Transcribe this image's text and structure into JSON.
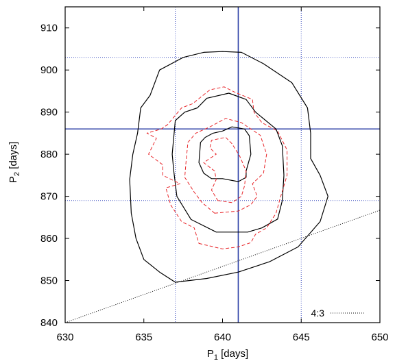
{
  "chart_data": {
    "type": "line",
    "title": "",
    "xlabel": {
      "main": "P",
      "sub": "1",
      "rest": " [days]"
    },
    "ylabel": {
      "main": "P",
      "sub": "2",
      "rest": " [days]"
    },
    "xlim": [
      630,
      650
    ],
    "ylim": [
      840,
      915
    ],
    "xticks": [
      630,
      635,
      640,
      645,
      650
    ],
    "yticks": [
      840,
      850,
      860,
      870,
      880,
      890,
      900,
      910
    ],
    "grid": false,
    "legend": {
      "position": "bottom-right",
      "entries": [
        {
          "label": "4:3",
          "style": "dotted"
        }
      ]
    },
    "colors": {
      "solid": "#000000",
      "dashed": "#e8262a",
      "reference": "#2b3fa6",
      "dotted_ref": "#3c4fbf"
    },
    "reference_lines": {
      "best_fit": {
        "x": 641,
        "y": 886
      },
      "bounds": {
        "x": [
          637,
          645
        ],
        "y": [
          869,
          903
        ]
      }
    },
    "resonance_line": {
      "label": "4:3",
      "points": [
        [
          630,
          840
        ],
        [
          650,
          866.7
        ]
      ]
    },
    "series": [
      {
        "style": "solid-outer",
        "points": [
          [
            637,
            849.6
          ],
          [
            639,
            850.5
          ],
          [
            641,
            852
          ],
          [
            643,
            854.5
          ],
          [
            644.8,
            858
          ],
          [
            646.2,
            864
          ],
          [
            646.7,
            870
          ],
          [
            646.2,
            875
          ],
          [
            645.6,
            879
          ],
          [
            645.6,
            885
          ],
          [
            645.4,
            891
          ],
          [
            644.4,
            897
          ],
          [
            642.6,
            901.5
          ],
          [
            641.2,
            904.2
          ],
          [
            640,
            904.4
          ],
          [
            638.8,
            904.2
          ],
          [
            637.5,
            903
          ],
          [
            636,
            900
          ],
          [
            635.4,
            894
          ],
          [
            634.8,
            891
          ],
          [
            634.6,
            885
          ],
          [
            634.3,
            880
          ],
          [
            634.1,
            874
          ],
          [
            634.2,
            866
          ],
          [
            634.5,
            860
          ],
          [
            635,
            855
          ],
          [
            636,
            852
          ]
        ]
      },
      {
        "style": "solid-middle",
        "points": [
          [
            638,
            864.5
          ],
          [
            639.6,
            861.5
          ],
          [
            641.6,
            861.5
          ],
          [
            642.5,
            862.5
          ],
          [
            643.5,
            864.6
          ],
          [
            643.8,
            869
          ],
          [
            643.9,
            875
          ],
          [
            643.8,
            882
          ],
          [
            643.4,
            886
          ],
          [
            642.1,
            890
          ],
          [
            641.5,
            893
          ],
          [
            640.4,
            894.5
          ],
          [
            639,
            893.3
          ],
          [
            638.4,
            891
          ],
          [
            637.6,
            890
          ],
          [
            637,
            888
          ],
          [
            636.8,
            880
          ],
          [
            636.9,
            876
          ],
          [
            637.1,
            870
          ]
        ]
      },
      {
        "style": "solid-inner",
        "points": [
          [
            640,
            874.2
          ],
          [
            641,
            873.5
          ],
          [
            641.5,
            874.5
          ],
          [
            641.5,
            876
          ],
          [
            641.8,
            880
          ],
          [
            641.7,
            884.4
          ],
          [
            641.4,
            886
          ],
          [
            640.6,
            886.5
          ],
          [
            640,
            885.5
          ],
          [
            639.4,
            885
          ],
          [
            638.9,
            884
          ],
          [
            638.6,
            882.8
          ],
          [
            638.5,
            878
          ],
          [
            638.8,
            875.5
          ],
          [
            639.3,
            874.2
          ]
        ]
      },
      {
        "style": "dashed-outer",
        "points": [
          [
            638.5,
            858.8
          ],
          [
            640,
            857.5
          ],
          [
            641,
            858
          ],
          [
            641.8,
            859
          ],
          [
            642.1,
            861
          ],
          [
            642.8,
            862.5
          ],
          [
            643.4,
            866
          ],
          [
            643.7,
            870
          ],
          [
            644.1,
            875
          ],
          [
            644.1,
            881
          ],
          [
            643.5,
            885.5
          ],
          [
            642.5,
            887.5
          ],
          [
            642,
            890
          ],
          [
            641.9,
            893
          ],
          [
            640.8,
            894.7
          ],
          [
            640.1,
            896
          ],
          [
            639.2,
            895.3
          ],
          [
            638.1,
            892
          ],
          [
            637.4,
            891
          ],
          [
            636.5,
            887
          ],
          [
            636.1,
            886
          ],
          [
            635.2,
            885
          ],
          [
            635.8,
            883.8
          ],
          [
            635.3,
            880
          ],
          [
            636.2,
            877.5
          ],
          [
            636.2,
            875
          ],
          [
            637.3,
            873
          ],
          [
            636.4,
            872
          ],
          [
            636.7,
            868
          ],
          [
            637.4,
            864
          ],
          [
            638.2,
            862.5
          ],
          [
            638.4,
            860
          ]
        ]
      },
      {
        "style": "dashed-middle",
        "points": [
          [
            639.5,
            866
          ],
          [
            641,
            866.5
          ],
          [
            641.8,
            868
          ],
          [
            642.2,
            870
          ],
          [
            641.9,
            873
          ],
          [
            642.6,
            875.5
          ],
          [
            642.8,
            880
          ],
          [
            642.4,
            884.5
          ],
          [
            641.2,
            887.5
          ],
          [
            640.2,
            888.5
          ],
          [
            639.2,
            886.5
          ],
          [
            638.3,
            885
          ],
          [
            637.8,
            882.8
          ],
          [
            637.7,
            879
          ],
          [
            637.6,
            874.5
          ],
          [
            638.2,
            871
          ],
          [
            638.7,
            868.5
          ]
        ]
      },
      {
        "style": "dashed-inner",
        "points": [
          [
            639.7,
            869
          ],
          [
            640.6,
            868.5
          ],
          [
            641.2,
            870
          ],
          [
            641.4,
            872.5
          ],
          [
            641.5,
            876
          ],
          [
            641.1,
            879.5
          ],
          [
            640.6,
            882.5
          ],
          [
            640.2,
            884
          ],
          [
            639.3,
            883.3
          ],
          [
            639.2,
            881.5
          ],
          [
            639.6,
            880
          ],
          [
            638.8,
            878
          ],
          [
            639.5,
            876
          ],
          [
            639.6,
            874
          ],
          [
            639.3,
            871.5
          ]
        ]
      }
    ]
  }
}
